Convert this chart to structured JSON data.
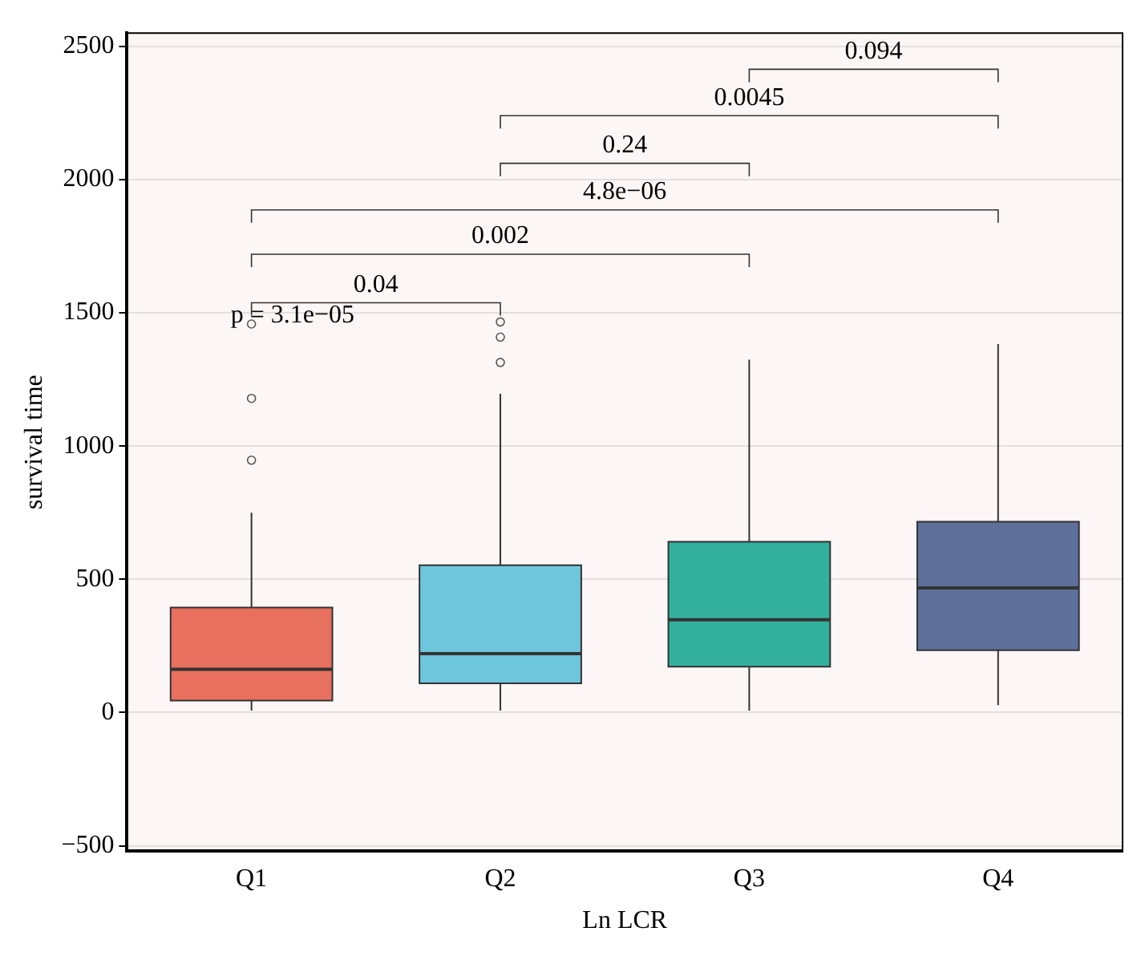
{
  "chart_data": {
    "type": "box",
    "xlabel": "Ln LCR",
    "ylabel": "survival time",
    "categories": [
      "Q1",
      "Q2",
      "Q3",
      "Q4"
    ],
    "colors": [
      "#e8705f",
      "#6ec6dc",
      "#33b09c",
      "#5e6f99"
    ],
    "boxes": [
      {
        "low": 7,
        "q1": 45,
        "median": 162,
        "q3": 394,
        "high": 750,
        "outliers": [
          947,
          1179,
          1458
        ]
      },
      {
        "low": 7,
        "q1": 110,
        "median": 221,
        "q3": 553,
        "high": 1196,
        "outliers": [
          1314,
          1409,
          1466
        ]
      },
      {
        "low": 7,
        "q1": 172,
        "median": 348,
        "q3": 641,
        "high": 1324
      },
      {
        "low": 28,
        "q1": 234,
        "median": 468,
        "q3": 716,
        "high": 1383
      }
    ],
    "ylim": [
      -520,
      2550
    ],
    "yticks": [
      -500,
      0,
      500,
      1000,
      1500,
      2000,
      2500
    ],
    "grid": "y",
    "annotations": [
      "p = 3.1e−05",
      "0.04",
      "0.002",
      "4.8e−06",
      "0.24",
      "0.0045",
      "0.094"
    ]
  }
}
